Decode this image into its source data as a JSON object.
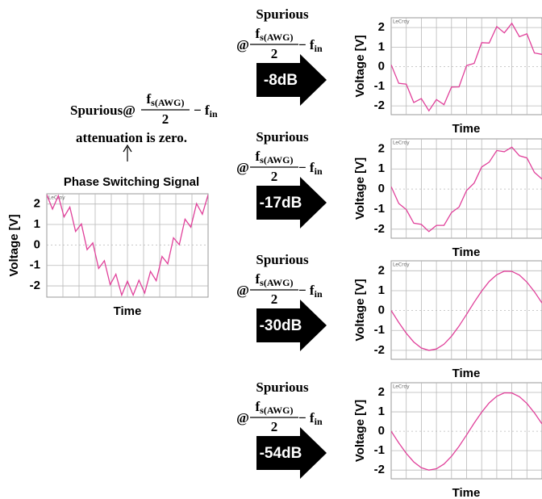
{
  "chart_data": [
    {
      "type": "line",
      "xlabel": "Time",
      "ylabel": "Voltage [V]",
      "brand": "LeCroy",
      "ylim": [
        -2.55,
        2.5
      ],
      "yticks": [
        2,
        1,
        0,
        -1,
        -2
      ],
      "grid": true,
      "series": [
        {
          "color": "#e0409a",
          "values": [
            2.45,
            1.75,
            2.4,
            1.37,
            1.85,
            0.66,
            1.03,
            -0.23,
            0.1,
            -1.15,
            -0.77,
            -1.94,
            -1.43,
            -2.45,
            -1.77,
            -2.45,
            -1.72,
            -2.35,
            -1.29,
            -1.75,
            -0.56,
            -0.92,
            0.35,
            0.01,
            1.26,
            0.87,
            2.02,
            1.5,
            2.45
          ]
        }
      ]
    },
    {
      "type": "line",
      "xlabel": "Time",
      "ylabel": "Voltage [V]",
      "brand": "LeCroy",
      "ylim": [
        -2.45,
        2.5
      ],
      "yticks": [
        2,
        1,
        0,
        -1,
        -2
      ],
      "grid": true,
      "series": [
        {
          "color": "#e0409a",
          "values": [
            0.1,
            -0.85,
            -0.89,
            -1.83,
            -1.63,
            -2.25,
            -1.68,
            -1.94,
            -1.04,
            -1.03,
            0.06,
            0.17,
            1.23,
            1.21,
            2.05,
            1.73,
            2.22,
            1.53,
            1.68,
            0.7,
            0.63
          ]
        }
      ]
    },
    {
      "type": "line",
      "xlabel": "Time",
      "ylabel": "Voltage [V]",
      "brand": "LeCroy",
      "ylim": [
        -2.45,
        2.5
      ],
      "yticks": [
        2,
        1,
        0,
        -1,
        -2
      ],
      "grid": true,
      "series": [
        {
          "color": "#e0409a",
          "values": [
            0.12,
            -0.72,
            -1.02,
            -1.7,
            -1.76,
            -2.12,
            -1.81,
            -1.81,
            -1.17,
            -0.9,
            -0.07,
            0.3,
            1.1,
            1.34,
            1.92,
            1.86,
            2.09,
            1.66,
            1.55,
            0.83,
            0.5
          ]
        }
      ]
    },
    {
      "type": "line",
      "xlabel": "Time",
      "ylabel": "Voltage [V]",
      "brand": "LeCroy",
      "ylim": [
        -2.45,
        2.5
      ],
      "yticks": [
        2,
        1,
        0,
        -1,
        -2
      ],
      "grid": true,
      "series": [
        {
          "color": "#e0409a",
          "values": [
            0,
            -0.6,
            -1.14,
            -1.58,
            -1.88,
            -2.0,
            -1.93,
            -1.69,
            -1.29,
            -0.78,
            -0.19,
            0.42,
            0.98,
            1.46,
            1.8,
            1.98,
            1.97,
            1.78,
            1.43,
            0.95,
            0.38
          ]
        }
      ]
    },
    {
      "type": "line",
      "xlabel": "Time",
      "ylabel": "Voltage [V]",
      "brand": "LeCroy",
      "ylim": [
        -2.45,
        2.5
      ],
      "yticks": [
        2,
        1,
        0,
        -1,
        -2
      ],
      "grid": true,
      "series": [
        {
          "color": "#e0409a",
          "values": [
            0,
            -0.6,
            -1.14,
            -1.58,
            -1.88,
            -2.0,
            -1.93,
            -1.69,
            -1.29,
            -0.78,
            -0.19,
            0.42,
            0.98,
            1.46,
            1.8,
            1.98,
            1.97,
            1.78,
            1.43,
            0.95,
            0.38
          ]
        }
      ]
    }
  ],
  "left": {
    "formula": {
      "prefix": "Spurious@",
      "num": "f",
      "num_sub": "s(AWG)",
      "den": "2",
      "minus": "− f",
      "minus_sub": "in"
    },
    "note": "attenuation is zero.",
    "caption": "Phase Switching Signal"
  },
  "panels": [
    {
      "title": "Spurious",
      "formula": {
        "prefix": "@",
        "num": "f",
        "num_sub": "s(AWG)",
        "den": "2",
        "minus": "− f",
        "minus_sub": "in"
      },
      "attenuation": "-8dB"
    },
    {
      "title": "Spurious",
      "formula": {
        "prefix": "@",
        "num": "f",
        "num_sub": "s(AWG)",
        "den": "2",
        "minus": "− f",
        "minus_sub": "in"
      },
      "attenuation": "-17dB"
    },
    {
      "title": "Spurious",
      "formula": {
        "prefix": "@",
        "num": "f",
        "num_sub": "s(AWG)",
        "den": "2",
        "minus": "− f",
        "minus_sub": "in"
      },
      "attenuation": "-30dB"
    },
    {
      "title": "Spurious",
      "formula": {
        "prefix": "@",
        "num": "f",
        "num_sub": "s(AWG)",
        "den": "2",
        "minus": "− f",
        "minus_sub": "in"
      },
      "attenuation": "-54dB"
    }
  ]
}
